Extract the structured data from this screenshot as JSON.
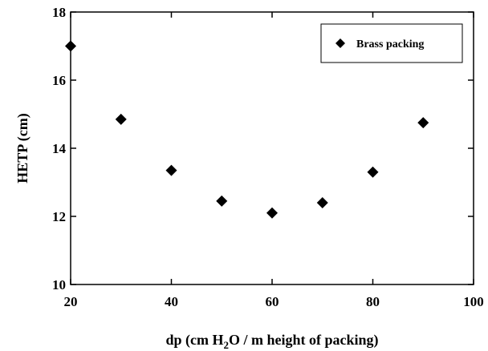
{
  "chart_data": {
    "type": "scatter",
    "x": [
      20,
      30,
      40,
      50,
      60,
      70,
      80,
      90
    ],
    "series": [
      {
        "name": "Brass packing",
        "color": "#000000",
        "values": [
          17.0,
          14.85,
          13.35,
          12.45,
          12.1,
          12.4,
          13.3,
          14.75
        ]
      }
    ],
    "xlim": [
      20,
      100
    ],
    "xticks": [
      20,
      40,
      60,
      80,
      100
    ],
    "ylim": [
      10,
      18
    ],
    "yticks": [
      10,
      12,
      14,
      16,
      18
    ],
    "x_label": [
      "dp (cm H",
      "2",
      "O / m height of packing)"
    ],
    "y_label": "HETP (cm)",
    "legend": "upper right",
    "grid": false
  }
}
